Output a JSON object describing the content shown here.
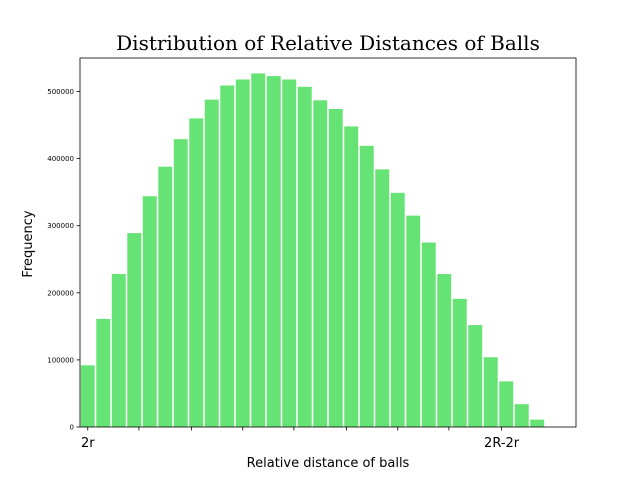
{
  "chart_data": {
    "type": "bar",
    "title": "Distribution of Relative Distances of Balls",
    "xlabel": "Relative distance of balls",
    "ylabel": "Frequency",
    "ylim": [
      0,
      550000
    ],
    "yticks": [
      0,
      100000,
      200000,
      300000,
      400000,
      500000
    ],
    "ytick_labels": [
      "0",
      "100000",
      "200000",
      "300000",
      "400000",
      "500000"
    ],
    "xlim": [
      -0.5,
      31.5
    ],
    "xticks": [
      {
        "pos": 0,
        "label": "2r"
      },
      {
        "pos": 3.3,
        "label": ""
      },
      {
        "pos": 6.7,
        "label": ""
      },
      {
        "pos": 10,
        "label": ""
      },
      {
        "pos": 13.3,
        "label": ""
      },
      {
        "pos": 16.7,
        "label": ""
      },
      {
        "pos": 20,
        "label": ""
      },
      {
        "pos": 23.3,
        "label": ""
      },
      {
        "pos": 26.7,
        "label": "2R-2r"
      }
    ],
    "bar_color": "#66e375",
    "categories": [
      0,
      1,
      2,
      3,
      4,
      5,
      6,
      7,
      8,
      9,
      10,
      11,
      12,
      13,
      14,
      15,
      16,
      17,
      18,
      19,
      20,
      21,
      22,
      23,
      24,
      25,
      26,
      27,
      28,
      29
    ],
    "values": [
      92000,
      161000,
      228000,
      289000,
      344000,
      388000,
      429000,
      460000,
      488000,
      509000,
      518000,
      527000,
      523000,
      518000,
      507000,
      487000,
      474000,
      448000,
      419000,
      384000,
      349000,
      315000,
      275000,
      228000,
      191000,
      152000,
      104000,
      68000,
      34000,
      11000
    ]
  }
}
